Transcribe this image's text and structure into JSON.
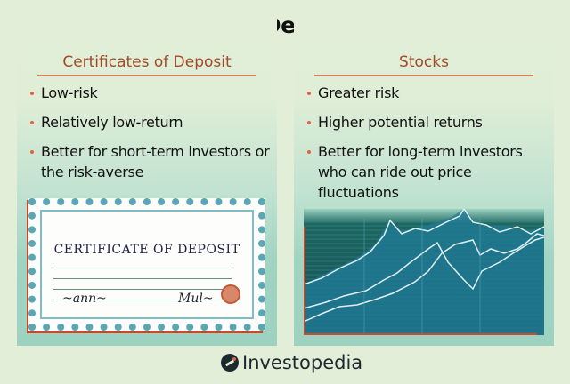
{
  "title": "Certificates of Deposit vs. Stocks",
  "left": {
    "heading": "Certificates of Deposit",
    "bullets": [
      "Low-risk",
      "Relatively low-return",
      "Better for short-term investors or the risk-averse"
    ],
    "illustration": {
      "title": "CERTIFICATE OF DEPOSIT"
    }
  },
  "right": {
    "heading": "Stocks",
    "bullets": [
      "Greater risk",
      "Higher potential returns",
      "Better for long-term investors who can ride out price fluctuations"
    ]
  },
  "brand": {
    "name": "Investopedia"
  },
  "colors": {
    "heading": "#a34a28",
    "bullet": "#e0643c",
    "background": "#e3eed8",
    "panel_bottom": "#9dd2c1",
    "chart_fill": "#1e6f85"
  }
}
